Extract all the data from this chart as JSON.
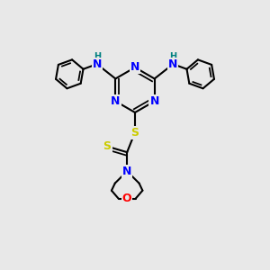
{
  "bg_color": "#e8e8e8",
  "atom_colors": {
    "N": "#0000ff",
    "NH": "#008080",
    "S": "#cccc00",
    "O": "#ff0000",
    "C": "#000000"
  },
  "bond_color": "#000000",
  "bond_width": 1.5,
  "font_size": 8
}
